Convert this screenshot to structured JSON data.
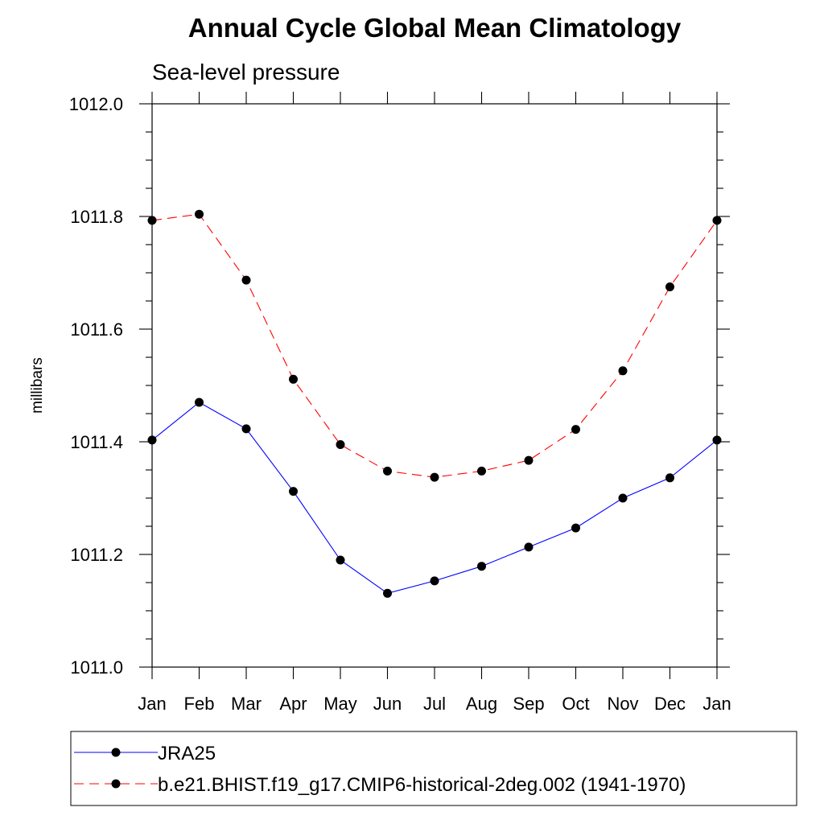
{
  "chart_data": {
    "type": "line",
    "title": "Annual Cycle Global Mean Climatology",
    "subtitle": "Sea-level pressure",
    "xlabel": "",
    "ylabel": "millibars",
    "categories": [
      "Jan",
      "Feb",
      "Mar",
      "Apr",
      "May",
      "Jun",
      "Jul",
      "Aug",
      "Sep",
      "Oct",
      "Nov",
      "Dec",
      "Jan"
    ],
    "ylim": [
      1011.0,
      1012.0
    ],
    "yticks": [
      "1011.0",
      "1011.2",
      "1011.4",
      "1011.6",
      "1011.8",
      "1012.0"
    ],
    "grid": false,
    "legend_position": "bottom",
    "series": [
      {
        "name": "JRA25",
        "color": "#0000ff",
        "dash": "solid",
        "marker": "filled-circle",
        "values": [
          1011.403,
          1011.47,
          1011.423,
          1011.312,
          1011.19,
          1011.131,
          1011.153,
          1011.179,
          1011.213,
          1011.247,
          1011.3,
          1011.336,
          1011.403
        ]
      },
      {
        "name": "b.e21.BHIST.f19_g17.CMIP6-historical-2deg.002 (1941-1970)",
        "color": "#ff0000",
        "dash": "dashed",
        "marker": "filled-circle",
        "values": [
          1011.793,
          1011.804,
          1011.687,
          1011.511,
          1011.395,
          1011.348,
          1011.337,
          1011.348,
          1011.367,
          1011.422,
          1011.526,
          1011.675,
          1011.793
        ]
      }
    ]
  }
}
